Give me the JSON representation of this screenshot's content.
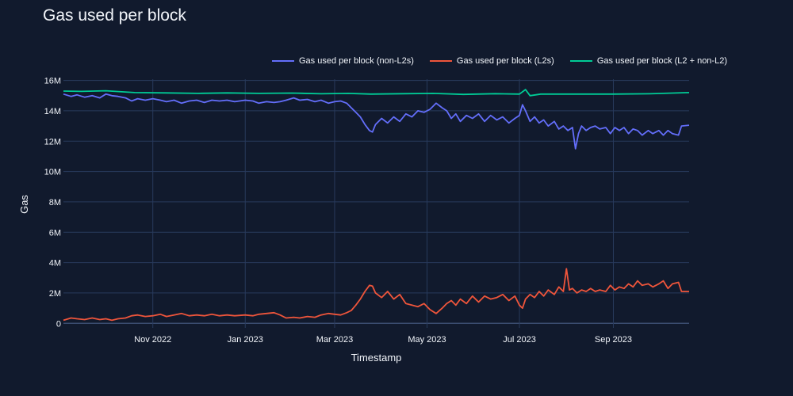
{
  "colors": {
    "background": "#111a2d",
    "grid": "#283a5c",
    "zero_line": "#3b4d70",
    "text": "#f2f5fa"
  },
  "chart_data": {
    "type": "line",
    "title": "Gas used per block",
    "xlabel": "Timestamp",
    "ylabel": "Gas",
    "x_axis_type": "date",
    "xlim": [
      "2022-09-03",
      "2023-10-21"
    ],
    "ylim": [
      -300000,
      16500000
    ],
    "x_tick_dates": [
      "2022-11-01",
      "2023-01-01",
      "2023-03-01",
      "2023-05-01",
      "2023-07-01",
      "2023-09-01"
    ],
    "x_tick_labels": [
      "Nov 2022",
      "Jan 2023",
      "Mar 2023",
      "May 2023",
      "Jul 2023",
      "Sep 2023"
    ],
    "y_tick_values": [
      0,
      2000000,
      4000000,
      6000000,
      8000000,
      10000000,
      12000000,
      14000000,
      16000000
    ],
    "y_tick_labels": [
      "0",
      "2M",
      "4M",
      "6M",
      "8M",
      "10M",
      "12M",
      "14M",
      "16M"
    ],
    "grid": true,
    "legend_position": "top-right",
    "series": [
      {
        "name": "Gas used per block (non-L2s)",
        "color": "#636efa",
        "points": [
          [
            "2022-09-03",
            15100000
          ],
          [
            "2022-09-08",
            14950000
          ],
          [
            "2022-09-12",
            15050000
          ],
          [
            "2022-09-17",
            14900000
          ],
          [
            "2022-09-22",
            15000000
          ],
          [
            "2022-09-27",
            14850000
          ],
          [
            "2022-10-01",
            15100000
          ],
          [
            "2022-10-05",
            15000000
          ],
          [
            "2022-10-09",
            14950000
          ],
          [
            "2022-10-14",
            14850000
          ],
          [
            "2022-10-18",
            14650000
          ],
          [
            "2022-10-22",
            14800000
          ],
          [
            "2022-10-27",
            14700000
          ],
          [
            "2022-11-01",
            14800000
          ],
          [
            "2022-11-06",
            14700000
          ],
          [
            "2022-11-10",
            14600000
          ],
          [
            "2022-11-15",
            14700000
          ],
          [
            "2022-11-20",
            14500000
          ],
          [
            "2022-11-25",
            14650000
          ],
          [
            "2022-11-30",
            14700000
          ],
          [
            "2022-12-05",
            14550000
          ],
          [
            "2022-12-10",
            14700000
          ],
          [
            "2022-12-15",
            14650000
          ],
          [
            "2022-12-20",
            14700000
          ],
          [
            "2022-12-25",
            14600000
          ],
          [
            "2023-01-01",
            14700000
          ],
          [
            "2023-01-06",
            14650000
          ],
          [
            "2023-01-10",
            14500000
          ],
          [
            "2023-01-15",
            14600000
          ],
          [
            "2023-01-20",
            14550000
          ],
          [
            "2023-01-24",
            14600000
          ],
          [
            "2023-01-28",
            14700000
          ],
          [
            "2023-02-02",
            14850000
          ],
          [
            "2023-02-06",
            14700000
          ],
          [
            "2023-02-11",
            14750000
          ],
          [
            "2023-02-16",
            14600000
          ],
          [
            "2023-02-20",
            14700000
          ],
          [
            "2023-02-25",
            14500000
          ],
          [
            "2023-03-01",
            14600000
          ],
          [
            "2023-03-05",
            14650000
          ],
          [
            "2023-03-09",
            14500000
          ],
          [
            "2023-03-12",
            14200000
          ],
          [
            "2023-03-15",
            13900000
          ],
          [
            "2023-03-18",
            13600000
          ],
          [
            "2023-03-21",
            13100000
          ],
          [
            "2023-03-24",
            12700000
          ],
          [
            "2023-03-26",
            12600000
          ],
          [
            "2023-03-28",
            13100000
          ],
          [
            "2023-04-01",
            13500000
          ],
          [
            "2023-04-05",
            13200000
          ],
          [
            "2023-04-09",
            13600000
          ],
          [
            "2023-04-13",
            13300000
          ],
          [
            "2023-04-17",
            13800000
          ],
          [
            "2023-04-21",
            13600000
          ],
          [
            "2023-04-25",
            14000000
          ],
          [
            "2023-04-29",
            13900000
          ],
          [
            "2023-05-03",
            14100000
          ],
          [
            "2023-05-07",
            14500000
          ],
          [
            "2023-05-11",
            14200000
          ],
          [
            "2023-05-14",
            14000000
          ],
          [
            "2023-05-17",
            13500000
          ],
          [
            "2023-05-20",
            13800000
          ],
          [
            "2023-05-23",
            13300000
          ],
          [
            "2023-05-27",
            13700000
          ],
          [
            "2023-05-31",
            13500000
          ],
          [
            "2023-06-04",
            13800000
          ],
          [
            "2023-06-08",
            13300000
          ],
          [
            "2023-06-12",
            13700000
          ],
          [
            "2023-06-16",
            13400000
          ],
          [
            "2023-06-20",
            13600000
          ],
          [
            "2023-06-24",
            13200000
          ],
          [
            "2023-06-28",
            13500000
          ],
          [
            "2023-07-01",
            13700000
          ],
          [
            "2023-07-03",
            14400000
          ],
          [
            "2023-07-05",
            14000000
          ],
          [
            "2023-07-08",
            13300000
          ],
          [
            "2023-07-11",
            13600000
          ],
          [
            "2023-07-14",
            13200000
          ],
          [
            "2023-07-17",
            13400000
          ],
          [
            "2023-07-20",
            13000000
          ],
          [
            "2023-07-24",
            13300000
          ],
          [
            "2023-07-27",
            12800000
          ],
          [
            "2023-07-30",
            13000000
          ],
          [
            "2023-08-02",
            12700000
          ],
          [
            "2023-08-05",
            12900000
          ],
          [
            "2023-08-07",
            11500000
          ],
          [
            "2023-08-09",
            12500000
          ],
          [
            "2023-08-11",
            13000000
          ],
          [
            "2023-08-14",
            12700000
          ],
          [
            "2023-08-17",
            12900000
          ],
          [
            "2023-08-20",
            13000000
          ],
          [
            "2023-08-23",
            12800000
          ],
          [
            "2023-08-27",
            12900000
          ],
          [
            "2023-08-30",
            12500000
          ],
          [
            "2023-09-02",
            12900000
          ],
          [
            "2023-09-05",
            12700000
          ],
          [
            "2023-09-08",
            12900000
          ],
          [
            "2023-09-11",
            12500000
          ],
          [
            "2023-09-14",
            12800000
          ],
          [
            "2023-09-17",
            12700000
          ],
          [
            "2023-09-20",
            12400000
          ],
          [
            "2023-09-24",
            12700000
          ],
          [
            "2023-09-27",
            12500000
          ],
          [
            "2023-10-01",
            12700000
          ],
          [
            "2023-10-04",
            12400000
          ],
          [
            "2023-10-07",
            12700000
          ],
          [
            "2023-10-10",
            12500000
          ],
          [
            "2023-10-14",
            12400000
          ],
          [
            "2023-10-16",
            13000000
          ],
          [
            "2023-10-21",
            13050000
          ]
        ]
      },
      {
        "name": "Gas used per block (L2s)",
        "color": "#ef553b",
        "points": [
          [
            "2022-09-03",
            200000
          ],
          [
            "2022-09-08",
            350000
          ],
          [
            "2022-09-12",
            300000
          ],
          [
            "2022-09-17",
            250000
          ],
          [
            "2022-09-22",
            350000
          ],
          [
            "2022-09-27",
            250000
          ],
          [
            "2022-10-01",
            300000
          ],
          [
            "2022-10-05",
            200000
          ],
          [
            "2022-10-09",
            300000
          ],
          [
            "2022-10-14",
            350000
          ],
          [
            "2022-10-18",
            500000
          ],
          [
            "2022-10-22",
            550000
          ],
          [
            "2022-10-27",
            450000
          ],
          [
            "2022-11-01",
            500000
          ],
          [
            "2022-11-06",
            600000
          ],
          [
            "2022-11-10",
            450000
          ],
          [
            "2022-11-15",
            550000
          ],
          [
            "2022-11-20",
            650000
          ],
          [
            "2022-11-25",
            500000
          ],
          [
            "2022-11-30",
            550000
          ],
          [
            "2022-12-05",
            500000
          ],
          [
            "2022-12-10",
            600000
          ],
          [
            "2022-12-15",
            500000
          ],
          [
            "2022-12-20",
            550000
          ],
          [
            "2022-12-25",
            500000
          ],
          [
            "2023-01-01",
            550000
          ],
          [
            "2023-01-06",
            500000
          ],
          [
            "2023-01-10",
            600000
          ],
          [
            "2023-01-15",
            650000
          ],
          [
            "2023-01-20",
            700000
          ],
          [
            "2023-01-24",
            550000
          ],
          [
            "2023-01-28",
            350000
          ],
          [
            "2023-02-02",
            400000
          ],
          [
            "2023-02-06",
            350000
          ],
          [
            "2023-02-11",
            450000
          ],
          [
            "2023-02-16",
            400000
          ],
          [
            "2023-02-20",
            550000
          ],
          [
            "2023-02-25",
            650000
          ],
          [
            "2023-03-01",
            600000
          ],
          [
            "2023-03-05",
            550000
          ],
          [
            "2023-03-09",
            700000
          ],
          [
            "2023-03-12",
            850000
          ],
          [
            "2023-03-15",
            1200000
          ],
          [
            "2023-03-18",
            1600000
          ],
          [
            "2023-03-21",
            2100000
          ],
          [
            "2023-03-24",
            2500000
          ],
          [
            "2023-03-26",
            2450000
          ],
          [
            "2023-03-28",
            2000000
          ],
          [
            "2023-04-01",
            1700000
          ],
          [
            "2023-04-05",
            2100000
          ],
          [
            "2023-04-09",
            1600000
          ],
          [
            "2023-04-13",
            1900000
          ],
          [
            "2023-04-17",
            1300000
          ],
          [
            "2023-04-21",
            1200000
          ],
          [
            "2023-04-25",
            1100000
          ],
          [
            "2023-04-29",
            1300000
          ],
          [
            "2023-05-03",
            900000
          ],
          [
            "2023-05-07",
            650000
          ],
          [
            "2023-05-11",
            1000000
          ],
          [
            "2023-05-14",
            1300000
          ],
          [
            "2023-05-17",
            1500000
          ],
          [
            "2023-05-20",
            1200000
          ],
          [
            "2023-05-23",
            1600000
          ],
          [
            "2023-05-27",
            1300000
          ],
          [
            "2023-05-31",
            1800000
          ],
          [
            "2023-06-04",
            1400000
          ],
          [
            "2023-06-08",
            1800000
          ],
          [
            "2023-06-12",
            1600000
          ],
          [
            "2023-06-16",
            1700000
          ],
          [
            "2023-06-20",
            1900000
          ],
          [
            "2023-06-24",
            1500000
          ],
          [
            "2023-06-28",
            1800000
          ],
          [
            "2023-07-01",
            1200000
          ],
          [
            "2023-07-03",
            1000000
          ],
          [
            "2023-07-05",
            1600000
          ],
          [
            "2023-07-08",
            1900000
          ],
          [
            "2023-07-11",
            1700000
          ],
          [
            "2023-07-14",
            2100000
          ],
          [
            "2023-07-17",
            1800000
          ],
          [
            "2023-07-20",
            2200000
          ],
          [
            "2023-07-24",
            1900000
          ],
          [
            "2023-07-27",
            2400000
          ],
          [
            "2023-07-30",
            2100000
          ],
          [
            "2023-08-01",
            3600000
          ],
          [
            "2023-08-03",
            2200000
          ],
          [
            "2023-08-05",
            2300000
          ],
          [
            "2023-08-08",
            2000000
          ],
          [
            "2023-08-11",
            2200000
          ],
          [
            "2023-08-14",
            2100000
          ],
          [
            "2023-08-17",
            2300000
          ],
          [
            "2023-08-20",
            2100000
          ],
          [
            "2023-08-23",
            2200000
          ],
          [
            "2023-08-27",
            2100000
          ],
          [
            "2023-08-30",
            2500000
          ],
          [
            "2023-09-02",
            2200000
          ],
          [
            "2023-09-05",
            2400000
          ],
          [
            "2023-09-08",
            2300000
          ],
          [
            "2023-09-11",
            2600000
          ],
          [
            "2023-09-14",
            2400000
          ],
          [
            "2023-09-17",
            2800000
          ],
          [
            "2023-09-20",
            2500000
          ],
          [
            "2023-09-24",
            2600000
          ],
          [
            "2023-09-27",
            2400000
          ],
          [
            "2023-10-01",
            2600000
          ],
          [
            "2023-10-04",
            2800000
          ],
          [
            "2023-10-07",
            2300000
          ],
          [
            "2023-10-10",
            2600000
          ],
          [
            "2023-10-14",
            2700000
          ],
          [
            "2023-10-16",
            2100000
          ],
          [
            "2023-10-21",
            2100000
          ]
        ]
      },
      {
        "name": "Gas used per block (L2 + non-L2)",
        "color": "#00cc96",
        "points": [
          [
            "2022-09-03",
            15300000
          ],
          [
            "2022-09-15",
            15280000
          ],
          [
            "2022-10-01",
            15320000
          ],
          [
            "2022-10-20",
            15200000
          ],
          [
            "2022-11-10",
            15180000
          ],
          [
            "2022-12-01",
            15150000
          ],
          [
            "2022-12-20",
            15180000
          ],
          [
            "2023-01-10",
            15150000
          ],
          [
            "2023-02-01",
            15170000
          ],
          [
            "2023-02-20",
            15120000
          ],
          [
            "2023-03-10",
            15150000
          ],
          [
            "2023-03-25",
            15100000
          ],
          [
            "2023-04-15",
            15130000
          ],
          [
            "2023-05-05",
            15150000
          ],
          [
            "2023-05-25",
            15080000
          ],
          [
            "2023-06-15",
            15130000
          ],
          [
            "2023-07-01",
            15100000
          ],
          [
            "2023-07-05",
            15400000
          ],
          [
            "2023-07-08",
            15000000
          ],
          [
            "2023-07-15",
            15100000
          ],
          [
            "2023-08-05",
            15100000
          ],
          [
            "2023-09-01",
            15100000
          ],
          [
            "2023-09-25",
            15120000
          ],
          [
            "2023-10-21",
            15200000
          ]
        ]
      }
    ]
  }
}
